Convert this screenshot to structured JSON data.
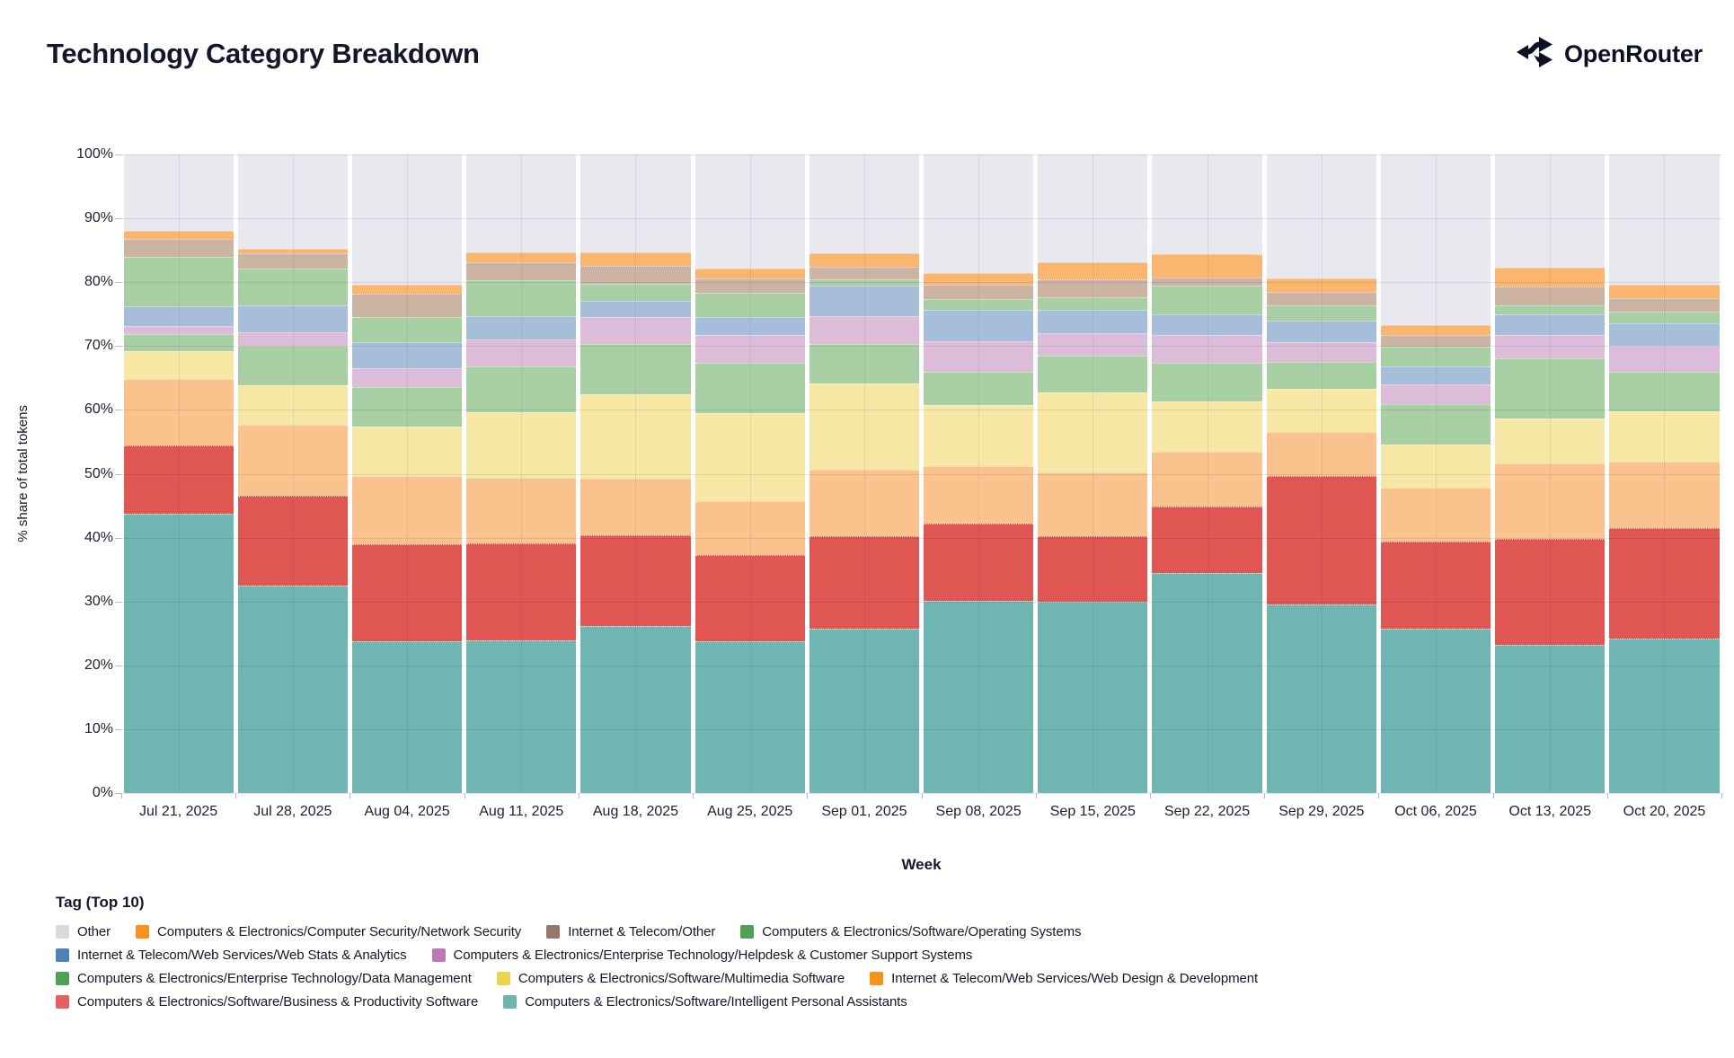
{
  "header": {
    "title": "Technology Category Breakdown",
    "brand": "OpenRouter"
  },
  "chart_data": {
    "type": "bar",
    "stacked": true,
    "percent": true,
    "title": "Technology Category Breakdown",
    "xlabel": "Week",
    "ylabel": "% share of total tokens",
    "ylim": [
      0,
      100
    ],
    "grid": true,
    "legend_position": "bottom",
    "legend_title": "Tag (Top 10)",
    "categories": [
      "Jul 21, 2025",
      "Jul 28, 2025",
      "Aug 04, 2025",
      "Aug 11, 2025",
      "Aug 18, 2025",
      "Aug 25, 2025",
      "Sep 01, 2025",
      "Sep 08, 2025",
      "Sep 15, 2025",
      "Sep 22, 2025",
      "Sep 29, 2025",
      "Oct 06, 2025",
      "Oct 13, 2025",
      "Oct 20, 2025"
    ],
    "series": [
      {
        "id": "ipa",
        "name": "Computers & Electronics/Software/Intelligent Personal Assistants",
        "bar_color": "#6FB5B1",
        "legend_color": "#70B4AE",
        "values": [
          43.7,
          32.5,
          23.8,
          23.9,
          26.2,
          23.7,
          25.8,
          30.1,
          30.0,
          34.4,
          29.5,
          25.8,
          23.2,
          24.2
        ]
      },
      {
        "id": "business",
        "name": "Computers & Electronics/Software/Business & Productivity Software",
        "bar_color": "#E05653",
        "legend_color": "#E4615D",
        "values": [
          10.7,
          14.1,
          15.2,
          15.2,
          14.1,
          13.6,
          14.4,
          12.1,
          10.2,
          10.4,
          20.1,
          13.6,
          16.6,
          17.3
        ]
      },
      {
        "id": "webdesign",
        "name": "Internet & Telecom/Web Services/Web Design & Development",
        "bar_color": "#FAC28D",
        "legend_color": "#F6921E",
        "values": [
          10.4,
          11.1,
          10.7,
          10.3,
          8.9,
          8.4,
          10.4,
          9.0,
          10.0,
          8.7,
          6.9,
          8.4,
          11.8,
          10.4
        ]
      },
      {
        "id": "multimedia",
        "name": "Computers & Electronics/Software/Multimedia Software",
        "bar_color": "#F6E7A5",
        "legend_color": "#EDD24E",
        "values": [
          4.4,
          6.1,
          7.7,
          10.2,
          13.2,
          13.8,
          13.6,
          9.5,
          12.5,
          7.8,
          6.8,
          6.8,
          7.1,
          7.9
        ]
      },
      {
        "id": "datamgmt",
        "name": "Computers & Electronics/Enterprise Technology/Data Management",
        "bar_color": "#A8CFA3",
        "legend_color": "#4EA154",
        "values": [
          2.7,
          6.2,
          6.2,
          7.2,
          7.9,
          7.9,
          6.1,
          5.2,
          5.8,
          6.0,
          4.2,
          6.3,
          9.4,
          6.1
        ]
      },
      {
        "id": "helpdesk",
        "name": "Computers & Electronics/Enterprise Technology/Helpdesk & Customer Support Systems",
        "bar_color": "#DCBCD9",
        "legend_color": "#BE78B5",
        "values": [
          1.3,
          2.1,
          2.9,
          4.2,
          4.3,
          4.3,
          4.4,
          4.9,
          3.5,
          4.4,
          3.1,
          3.1,
          3.6,
          4.2
        ]
      },
      {
        "id": "webstats",
        "name": "Internet & Telecom/Web Services/Web Stats & Analytics",
        "bar_color": "#A6BED9",
        "legend_color": "#4C82B7",
        "values": [
          3.0,
          4.3,
          4.1,
          3.7,
          2.5,
          2.9,
          4.7,
          4.8,
          3.6,
          3.3,
          3.4,
          2.8,
          3.3,
          3.5
        ]
      },
      {
        "id": "os",
        "name": "Computers & Electronics/Software/Operating Systems",
        "bar_color": "#A8CFA3",
        "legend_color": "#4EA154",
        "values": [
          7.8,
          5.8,
          3.9,
          5.6,
          2.7,
          3.8,
          1.0,
          1.7,
          2.1,
          4.4,
          2.3,
          3.1,
          1.4,
          1.8
        ]
      },
      {
        "id": "telecom",
        "name": "Internet & Telecom/Other",
        "bar_color": "#CDB3A4",
        "legend_color": "#97776C",
        "values": [
          2.8,
          2.3,
          3.7,
          2.8,
          2.8,
          2.2,
          2.0,
          2.3,
          2.7,
          1.4,
          2.2,
          1.8,
          2.9,
          2.1
        ]
      },
      {
        "id": "netsec",
        "name": "Computers & Electronics/Computer Security/Network Security",
        "bar_color": "#FAB56E",
        "legend_color": "#F6921E",
        "values": [
          1.2,
          0.7,
          1.4,
          1.6,
          2.1,
          1.6,
          2.1,
          1.8,
          2.7,
          3.6,
          2.1,
          1.6,
          3.0,
          2.1
        ]
      },
      {
        "id": "other",
        "name": "Other",
        "bar_color": "#E9E8EE",
        "legend_color": "#D8D8DD",
        "values": [
          12.0,
          14.8,
          20.4,
          15.3,
          15.3,
          17.8,
          15.5,
          18.6,
          16.9,
          15.6,
          19.4,
          26.7,
          17.7,
          20.4
        ]
      }
    ],
    "legend_rows": [
      [
        "other",
        "netsec",
        "telecom",
        "os"
      ],
      [
        "webstats",
        "helpdesk"
      ],
      [
        "datamgmt",
        "multimedia",
        "webdesign"
      ],
      [
        "business",
        "ipa"
      ]
    ]
  }
}
